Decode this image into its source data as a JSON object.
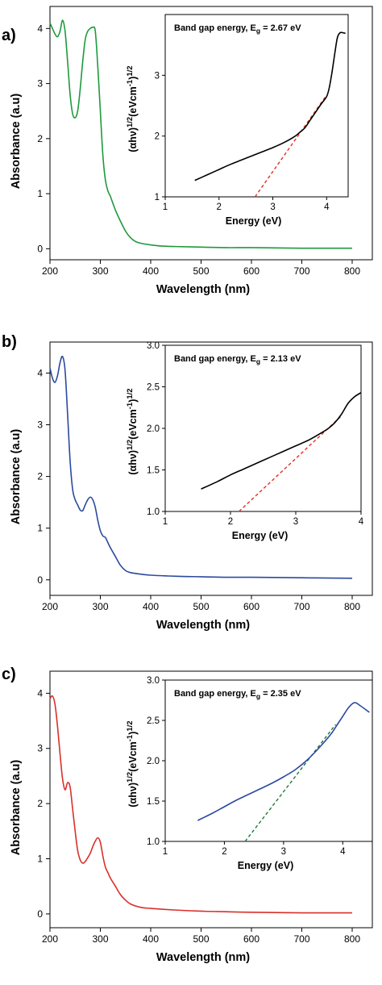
{
  "chart_data": [
    {
      "panel_label": "a)",
      "type": "line",
      "xlabel": "Wavelength (nm)",
      "ylabel": "Absorbance (a.u)",
      "xlim": [
        200,
        840
      ],
      "ylim": [
        -0.2,
        4.4
      ],
      "xticks": [
        "200",
        "300",
        "400",
        "500",
        "600",
        "700",
        "800"
      ],
      "yticks": [
        "0",
        "1",
        "2",
        "3",
        "4"
      ],
      "series": [
        {
          "color": "#1f9a3c",
          "x": [
            200,
            205,
            210,
            215,
            220,
            225,
            230,
            235,
            240,
            245,
            250,
            255,
            260,
            265,
            270,
            275,
            280,
            285,
            290,
            295,
            300,
            305,
            310,
            315,
            320,
            330,
            340,
            350,
            360,
            370,
            380,
            400,
            420,
            450,
            500,
            550,
            600,
            700,
            800
          ],
          "y": [
            4.1,
            4.0,
            3.9,
            3.85,
            3.95,
            4.15,
            3.95,
            3.4,
            2.8,
            2.45,
            2.38,
            2.5,
            2.9,
            3.4,
            3.8,
            3.95,
            4.0,
            4.02,
            3.95,
            3.3,
            2.5,
            1.7,
            1.25,
            1.05,
            0.95,
            0.7,
            0.5,
            0.32,
            0.2,
            0.13,
            0.1,
            0.07,
            0.05,
            0.04,
            0.03,
            0.02,
            0.02,
            0.01,
            0.01
          ]
        }
      ],
      "inset": {
        "type": "line",
        "annotation_text": "Band gap energy, E",
        "annotation_sub": "g",
        "annotation_value": " = 2.67 eV",
        "xlabel": "Energy (eV)",
        "ylabel_base": "(αhν)",
        "ylabel_sup1": "1/2",
        "ylabel_mid": "(eVcm",
        "ylabel_sup2": "-1",
        "ylabel_end": ")",
        "ylabel_sup3": "1/2",
        "xlim": [
          1,
          4.4
        ],
        "ylim": [
          1,
          4
        ],
        "xticks": [
          "1",
          "2",
          "3",
          "4"
        ],
        "yticks": [
          "1",
          "2",
          "3"
        ],
        "curve_color": "#000000",
        "curve_x": [
          1.55,
          1.8,
          2.0,
          2.2,
          2.4,
          2.6,
          2.8,
          3.0,
          3.2,
          3.4,
          3.5,
          3.6,
          3.7,
          3.8,
          3.9,
          4.0,
          4.05,
          4.1,
          4.15,
          4.2,
          4.25,
          4.3,
          4.35
        ],
        "curve_y": [
          1.27,
          1.37,
          1.45,
          1.53,
          1.6,
          1.67,
          1.74,
          1.81,
          1.89,
          1.99,
          2.06,
          2.14,
          2.27,
          2.4,
          2.53,
          2.65,
          2.8,
          3.05,
          3.35,
          3.62,
          3.7,
          3.7,
          3.69
        ],
        "fit_color": "#e03020",
        "fit_x": [
          2.67,
          3.98
        ],
        "fit_y": [
          1.0,
          2.65
        ]
      }
    },
    {
      "panel_label": "b)",
      "type": "line",
      "xlabel": "Wavelength (nm)",
      "ylabel": "Absorbance (a.u)",
      "xlim": [
        200,
        840
      ],
      "ylim": [
        -0.3,
        4.6
      ],
      "xticks": [
        "200",
        "300",
        "400",
        "500",
        "600",
        "700",
        "800"
      ],
      "yticks": [
        "0",
        "1",
        "2",
        "3",
        "4"
      ],
      "series": [
        {
          "color": "#2b4a9e",
          "x": [
            200,
            205,
            210,
            215,
            220,
            225,
            230,
            235,
            240,
            245,
            250,
            255,
            260,
            265,
            270,
            275,
            280,
            285,
            290,
            295,
            300,
            305,
            310,
            315,
            320,
            330,
            340,
            350,
            360,
            380,
            400,
            450,
            500,
            550,
            600,
            700,
            800
          ],
          "y": [
            4.1,
            3.9,
            3.82,
            3.95,
            4.2,
            4.32,
            4.05,
            3.2,
            2.3,
            1.75,
            1.55,
            1.45,
            1.35,
            1.34,
            1.45,
            1.55,
            1.6,
            1.55,
            1.4,
            1.15,
            0.95,
            0.85,
            0.82,
            0.72,
            0.62,
            0.45,
            0.28,
            0.18,
            0.14,
            0.11,
            0.09,
            0.07,
            0.06,
            0.05,
            0.05,
            0.04,
            0.03
          ]
        }
      ],
      "inset": {
        "type": "line",
        "annotation_text": "Band gap energy, E",
        "annotation_sub": "g",
        "annotation_value": " = 2.13 eV",
        "xlabel": "Energy (eV)",
        "ylabel_base": "(αhν)",
        "ylabel_sup1": "1/2",
        "ylabel_mid": "(eVcm",
        "ylabel_sup2": "-1",
        "ylabel_end": ")",
        "ylabel_sup3": "1/2",
        "xlim": [
          1,
          4
        ],
        "ylim": [
          1.0,
          3.0
        ],
        "xticks": [
          "1",
          "2",
          "3",
          "4"
        ],
        "yticks": [
          "1.0",
          "1.5",
          "2.0",
          "2.5",
          "3.0"
        ],
        "curve_color": "#000000",
        "curve_x": [
          1.55,
          1.8,
          2.0,
          2.2,
          2.4,
          2.6,
          2.8,
          3.0,
          3.2,
          3.4,
          3.5,
          3.6,
          3.7,
          3.8,
          3.9,
          4.0
        ],
        "curve_y": [
          1.27,
          1.36,
          1.44,
          1.51,
          1.58,
          1.65,
          1.72,
          1.79,
          1.86,
          1.95,
          2.0,
          2.07,
          2.17,
          2.3,
          2.38,
          2.43
        ],
        "fit_color": "#e03020",
        "fit_x": [
          2.13,
          3.7
        ],
        "fit_y": [
          1.0,
          2.15
        ]
      }
    },
    {
      "panel_label": "c)",
      "type": "line",
      "xlabel": "Wavelength (nm)",
      "ylabel": "Absorbance (a.u)",
      "xlim": [
        200,
        840
      ],
      "ylim": [
        -0.25,
        4.4
      ],
      "xticks": [
        "200",
        "300",
        "400",
        "500",
        "600",
        "700",
        "800"
      ],
      "yticks": [
        "0",
        "1",
        "2",
        "3",
        "4"
      ],
      "series": [
        {
          "color": "#d8302a",
          "x": [
            200,
            205,
            210,
            215,
            220,
            225,
            230,
            235,
            240,
            245,
            250,
            255,
            260,
            265,
            270,
            275,
            280,
            285,
            290,
            295,
            300,
            305,
            310,
            315,
            320,
            330,
            340,
            350,
            360,
            380,
            400,
            450,
            500,
            550,
            600,
            700,
            800
          ],
          "y": [
            3.9,
            3.95,
            3.8,
            3.4,
            2.9,
            2.45,
            2.25,
            2.38,
            2.3,
            1.9,
            1.5,
            1.15,
            0.98,
            0.92,
            0.95,
            1.02,
            1.1,
            1.22,
            1.32,
            1.38,
            1.3,
            1.05,
            0.85,
            0.75,
            0.65,
            0.5,
            0.35,
            0.25,
            0.18,
            0.12,
            0.1,
            0.07,
            0.05,
            0.04,
            0.03,
            0.02,
            0.02
          ]
        }
      ],
      "inset": {
        "type": "line",
        "annotation_text": "Band gap energy, E",
        "annotation_sub": "g",
        "annotation_value": " = 2.35 eV",
        "xlabel": "Energy (eV)",
        "ylabel_base": "(αhν)",
        "ylabel_sup1": "1/2",
        "ylabel_mid": "(eVcm",
        "ylabel_sup2": "-1",
        "ylabel_end": ")",
        "ylabel_sup3": "1/2",
        "xlim": [
          1,
          4.5
        ],
        "ylim": [
          1.0,
          3.0
        ],
        "xticks": [
          "1",
          "2",
          "3",
          "4"
        ],
        "yticks": [
          "1.0",
          "1.5",
          "2.0",
          "2.5",
          "3.0"
        ],
        "curve_color": "#2b4a9e",
        "curve_x": [
          1.55,
          1.8,
          2.0,
          2.2,
          2.4,
          2.6,
          2.8,
          3.0,
          3.2,
          3.4,
          3.6,
          3.8,
          3.9,
          4.0,
          4.1,
          4.2,
          4.3,
          4.45
        ],
        "curve_y": [
          1.26,
          1.35,
          1.43,
          1.51,
          1.58,
          1.65,
          1.72,
          1.8,
          1.89,
          2.01,
          2.16,
          2.33,
          2.44,
          2.55,
          2.66,
          2.72,
          2.68,
          2.6
        ],
        "fit_color": "#1e7a3a",
        "fit_x": [
          2.35,
          3.88
        ],
        "fit_y": [
          1.0,
          2.45
        ]
      }
    }
  ]
}
